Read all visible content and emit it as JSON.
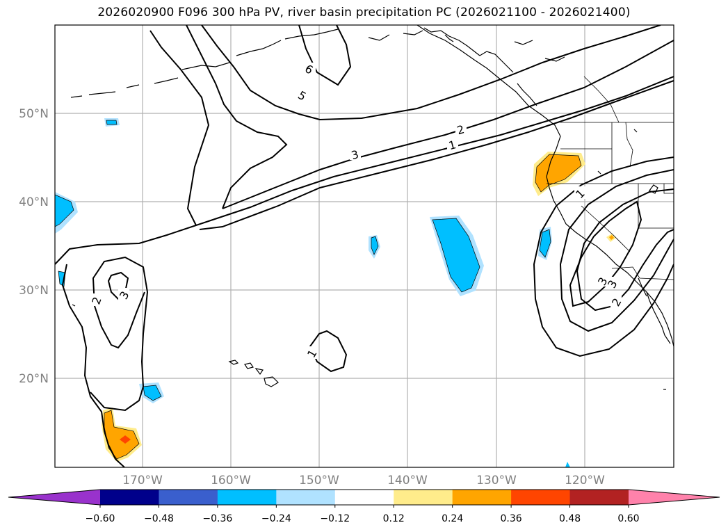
{
  "title": "2026020900 F096 300 hPa PV, river basin precipitation PC (2026021100 - 2026021400)",
  "map": {
    "lat_labels": [
      "50°N",
      "40°N",
      "30°N",
      "20°N"
    ],
    "lon_labels": [
      "170°W",
      "160°W",
      "150°W",
      "140°W",
      "130°W",
      "120°W"
    ],
    "contour_labels": [
      "6",
      "5",
      "3",
      "2",
      "1",
      "2",
      "3",
      "1",
      "1",
      "3",
      "2",
      "3"
    ]
  },
  "colorbar": {
    "ticks": [
      "−0.60",
      "−0.48",
      "−0.36",
      "−0.24",
      "−0.12",
      "0.12",
      "0.24",
      "0.36",
      "0.48",
      "0.60"
    ],
    "colors": [
      "#9932cc",
      "#00008b",
      "#3a5fcd",
      "#00bfff",
      "#b0e2ff",
      "#ffffff",
      "#ffec8b",
      "#ffa500",
      "#ff4500",
      "#b22222",
      "#ff82ab"
    ]
  },
  "colors": {
    "grid": "#b0b0b0",
    "contour": "#000000",
    "label_gray": "#808080"
  }
}
